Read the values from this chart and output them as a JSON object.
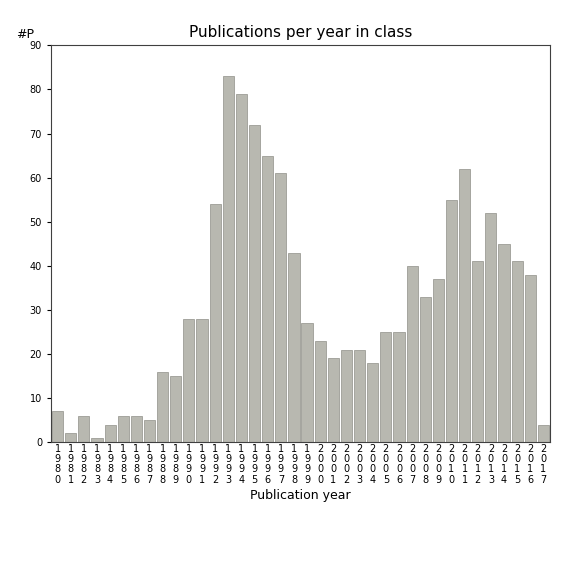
{
  "title": "Publications per year in class",
  "xlabel": "Publication year",
  "ylabel": "#P",
  "years": [
    "1980",
    "1981",
    "1982",
    "1983",
    "1984",
    "1985",
    "1986",
    "1987",
    "1988",
    "1989",
    "1990",
    "1991",
    "1992",
    "1993",
    "1994",
    "1995",
    "1996",
    "1997",
    "1998",
    "1999",
    "2000",
    "2001",
    "2002",
    "2003",
    "2004",
    "2005",
    "2006",
    "2007",
    "2008",
    "2009",
    "2010",
    "2011",
    "2012",
    "2013",
    "2014",
    "2015",
    "2016",
    "2017"
  ],
  "values": [
    7,
    2,
    6,
    1,
    4,
    6,
    6,
    5,
    16,
    15,
    28,
    28,
    54,
    83,
    79,
    72,
    65,
    61,
    43,
    27,
    23,
    19,
    21,
    21,
    18,
    25,
    25,
    40,
    33,
    37,
    55,
    62,
    41,
    52,
    45,
    41,
    38,
    4
  ],
  "bar_color": "#b8b8b0",
  "bar_edgecolor": "#909088",
  "ylim": [
    0,
    90
  ],
  "yticks": [
    0,
    10,
    20,
    30,
    40,
    50,
    60,
    70,
    80,
    90
  ],
  "background_color": "#ffffff",
  "title_fontsize": 11,
  "axis_fontsize": 9,
  "tick_fontsize": 7
}
